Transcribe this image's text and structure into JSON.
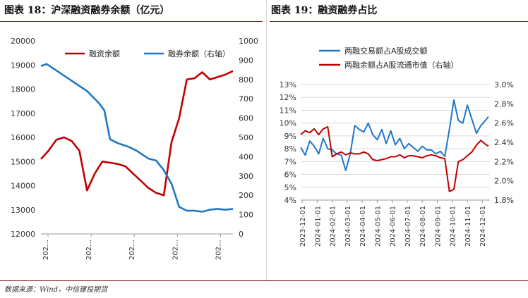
{
  "panels": {
    "left_title": "图表 18：沪深融资融券余额（亿元）",
    "right_title": "图表 19：融资融券占比"
  },
  "source": "数据来源：Wind，中信建投期货",
  "colors": {
    "red": "#c00000",
    "blue": "#1f77c8",
    "accent": "#8f1d21",
    "grid": "#d9d9d9"
  },
  "chart_data": [
    {
      "type": "line",
      "title": "沪深融资融券余额（亿元）",
      "x_tick_labels": [
        "202…",
        "202…",
        "202…",
        "202…",
        "202…"
      ],
      "y_left": {
        "lim": [
          12000,
          20000
        ],
        "ticks": [
          "12000",
          "13000",
          "14000",
          "15000",
          "16000",
          "17000",
          "18000",
          "19000",
          "20000"
        ]
      },
      "y_right": {
        "lim": [
          0,
          1000
        ],
        "ticks": [
          "0",
          "100",
          "200",
          "300",
          "400",
          "500",
          "600",
          "700",
          "800",
          "900",
          "1000"
        ]
      },
      "legend": "top",
      "series": [
        {
          "name": "融资余额",
          "axis": "left",
          "color": "#c00000",
          "x": [
            0,
            4,
            8,
            12,
            16,
            20,
            24,
            28,
            32,
            36,
            40,
            44,
            48,
            52,
            56,
            60,
            64,
            68,
            72,
            76,
            80,
            84,
            88,
            92,
            96,
            100
          ],
          "values": [
            15100,
            15450,
            15900,
            16000,
            15850,
            15450,
            13800,
            14500,
            15000,
            14950,
            14900,
            14800,
            14500,
            14200,
            13900,
            13700,
            13600,
            15800,
            16800,
            18400,
            18450,
            18700,
            18400,
            18500,
            18600,
            18750
          ]
        },
        {
          "name": "融券余额（右轴）",
          "axis": "right",
          "color": "#1f77c8",
          "x": [
            0,
            3,
            6,
            9,
            12,
            15,
            18,
            21,
            24,
            27,
            30,
            33,
            36,
            40,
            43,
            46,
            50,
            53,
            56,
            60,
            64,
            68,
            72,
            76,
            80,
            84,
            88,
            92,
            96,
            100
          ],
          "values": [
            870,
            880,
            860,
            840,
            820,
            800,
            780,
            760,
            740,
            710,
            680,
            640,
            490,
            470,
            460,
            450,
            430,
            410,
            390,
            380,
            330,
            260,
            140,
            120,
            120,
            115,
            125,
            130,
            125,
            130
          ]
        }
      ]
    },
    {
      "type": "line",
      "title": "融资融券占比",
      "x_tick_labels": [
        "2023-12-01",
        "2024-01-01",
        "2024-02-01",
        "2024-03-01",
        "2024-04-01",
        "2024-05-01",
        "2024-06-01",
        "2024-07-01",
        "2024-08-01",
        "2024-09-01",
        "2024-10-01",
        "2024-11-01",
        "2024-12-01"
      ],
      "y_left": {
        "lim": [
          4,
          13
        ],
        "ticks": [
          "4%",
          "5%",
          "6%",
          "7%",
          "8%",
          "9%",
          "10%",
          "11%",
          "12%",
          "13%"
        ]
      },
      "y_right": {
        "lim": [
          1.8,
          3.0
        ],
        "ticks": [
          "1.8%",
          "2.0%",
          "2.2%",
          "2.4%",
          "2.6%",
          "2.8%",
          "3.0%"
        ]
      },
      "legend": "top-left",
      "series": [
        {
          "name": "两融交易额占A股成交额",
          "axis": "left",
          "color": "#1f77c8",
          "x": [
            0,
            0.3,
            0.6,
            0.9,
            1.2,
            1.5,
            1.8,
            2.1,
            2.4,
            2.7,
            3,
            3.3,
            3.6,
            3.9,
            4.2,
            4.5,
            4.8,
            5.1,
            5.4,
            5.7,
            6,
            6.3,
            6.6,
            6.9,
            7.2,
            7.5,
            7.8,
            8.1,
            8.4,
            8.7,
            9,
            9.3,
            9.6,
            9.9,
            10.2,
            10.5,
            10.8,
            11.1,
            11.4,
            11.7,
            12,
            12.3,
            12.5
          ],
          "values": [
            8.1,
            7.5,
            8.6,
            8.2,
            7.6,
            8.8,
            8.0,
            7.9,
            7.6,
            7.5,
            6.3,
            7.6,
            9.8,
            9.5,
            9.3,
            10.0,
            9.1,
            8.7,
            9.5,
            8.4,
            9.4,
            8.3,
            8.8,
            8.0,
            8.4,
            8.1,
            7.8,
            8.2,
            7.9,
            7.9,
            7.6,
            7.8,
            7.4,
            9.5,
            11.8,
            10.2,
            10.0,
            11.4,
            10.3,
            9.2,
            9.8,
            10.2,
            10.5
          ]
        },
        {
          "name": "两融余额占A股流通市值（右轴）",
          "axis": "right",
          "color": "#c00000",
          "x": [
            0,
            0.3,
            0.6,
            0.9,
            1.2,
            1.5,
            1.8,
            2.1,
            2.4,
            2.7,
            3,
            3.3,
            3.6,
            3.9,
            4.2,
            4.5,
            4.8,
            5.1,
            5.4,
            5.7,
            6,
            6.3,
            6.6,
            6.9,
            7.2,
            7.5,
            7.8,
            8.1,
            8.4,
            8.7,
            9,
            9.3,
            9.6,
            9.9,
            10.2,
            10.5,
            10.8,
            11.1,
            11.4,
            11.7,
            12,
            12.3,
            12.5
          ],
          "values": [
            2.48,
            2.52,
            2.5,
            2.54,
            2.48,
            2.54,
            2.56,
            2.25,
            2.28,
            2.3,
            2.27,
            2.29,
            2.28,
            2.28,
            2.3,
            2.28,
            2.22,
            2.21,
            2.22,
            2.23,
            2.25,
            2.25,
            2.27,
            2.24,
            2.26,
            2.26,
            2.25,
            2.24,
            2.26,
            2.27,
            2.26,
            2.24,
            2.23,
            1.89,
            1.91,
            2.2,
            2.22,
            2.26,
            2.3,
            2.37,
            2.42,
            2.38,
            2.36
          ]
        }
      ]
    }
  ]
}
